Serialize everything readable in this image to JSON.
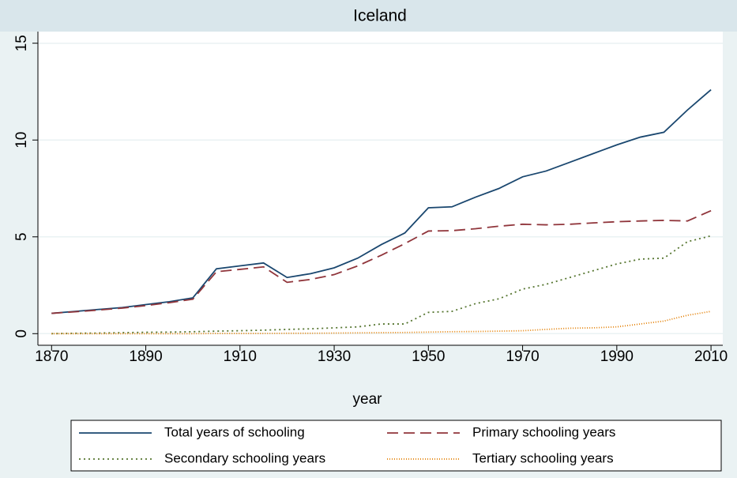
{
  "chart_data": {
    "type": "line",
    "title": "Iceland",
    "xlabel": "year",
    "x": [
      1870,
      1875,
      1880,
      1885,
      1890,
      1895,
      1900,
      1905,
      1910,
      1915,
      1920,
      1925,
      1930,
      1935,
      1940,
      1945,
      1950,
      1955,
      1960,
      1965,
      1970,
      1975,
      1980,
      1985,
      1990,
      1995,
      2000,
      2005,
      2010
    ],
    "series": [
      {
        "name": "Total years of schooling",
        "color": "#1a476f",
        "dash": "none",
        "values": [
          1.05,
          1.15,
          1.25,
          1.35,
          1.5,
          1.65,
          1.85,
          3.35,
          3.5,
          3.65,
          2.9,
          3.1,
          3.4,
          3.9,
          4.6,
          5.2,
          6.5,
          6.55,
          7.05,
          7.5,
          8.1,
          8.4,
          8.85,
          9.3,
          9.75,
          10.15,
          10.4,
          11.55,
          12.6
        ]
      },
      {
        "name": "Primary schooling years",
        "color": "#90353b",
        "dash": "14 7",
        "values": [
          1.05,
          1.13,
          1.22,
          1.32,
          1.45,
          1.6,
          1.78,
          3.2,
          3.32,
          3.45,
          2.65,
          2.8,
          3.05,
          3.5,
          4.05,
          4.65,
          5.3,
          5.32,
          5.42,
          5.55,
          5.65,
          5.62,
          5.65,
          5.72,
          5.78,
          5.82,
          5.85,
          5.82,
          6.35
        ]
      },
      {
        "name": "Secondary schooling years",
        "color": "#55752f",
        "dash": "2 4",
        "values": [
          0,
          0.02,
          0.03,
          0.05,
          0.07,
          0.08,
          0.1,
          0.13,
          0.15,
          0.18,
          0.22,
          0.25,
          0.3,
          0.35,
          0.5,
          0.5,
          1.1,
          1.15,
          1.55,
          1.8,
          2.3,
          2.55,
          2.9,
          3.25,
          3.6,
          3.85,
          3.9,
          4.75,
          5.05
        ]
      },
      {
        "name": "Tertiary schooling years",
        "color": "#e37e00",
        "dash": "1 2",
        "values": [
          0,
          0,
          0,
          0,
          0,
          0,
          0,
          0.01,
          0.01,
          0.01,
          0.02,
          0.02,
          0.03,
          0.04,
          0.05,
          0.06,
          0.08,
          0.1,
          0.11,
          0.13,
          0.15,
          0.22,
          0.28,
          0.3,
          0.35,
          0.5,
          0.65,
          0.95,
          1.15
        ]
      }
    ],
    "xlim": [
      1867.1,
      2012.5
    ],
    "xticks": [
      1870,
      1890,
      1910,
      1930,
      1950,
      1970,
      1990,
      2010
    ],
    "ylim": [
      -0.6,
      15.6
    ],
    "yticks": [
      0,
      5,
      10,
      15
    ],
    "grid": true
  }
}
